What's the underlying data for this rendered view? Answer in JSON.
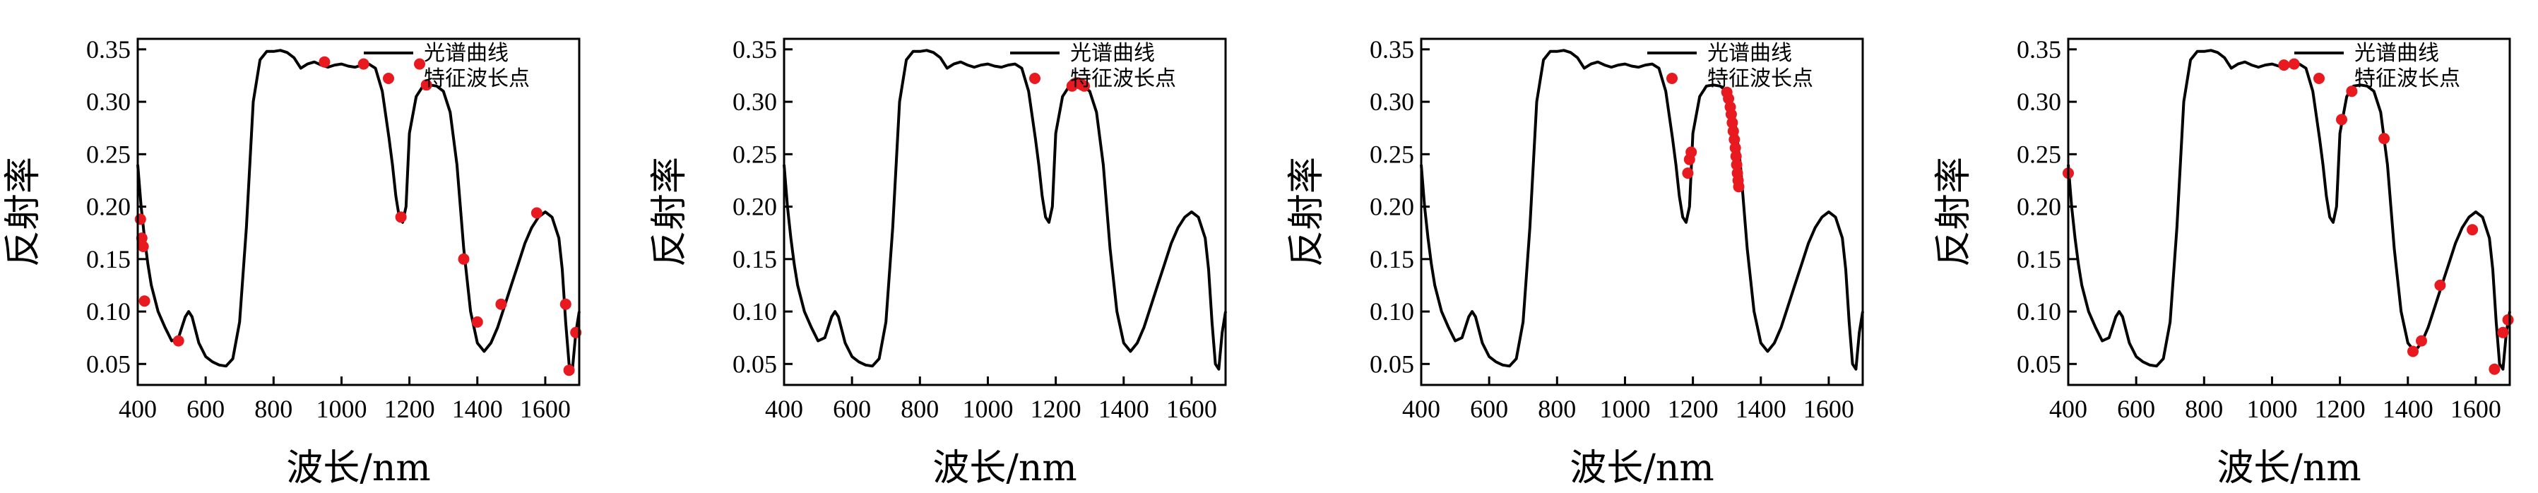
{
  "chart_data": [
    {
      "type": "line",
      "panel": "panel-1",
      "xlabel": "波长/nm",
      "ylabel": "反射率",
      "xlim": [
        400,
        1700
      ],
      "ylim": [
        0.03,
        0.36
      ],
      "xticks": [
        "400",
        "600",
        "800",
        "1000",
        "1200",
        "1400",
        "1600"
      ],
      "yticks": [
        "0.05",
        "0.10",
        "0.15",
        "0.20",
        "0.25",
        "0.30",
        "0.35"
      ],
      "legend": {
        "placement": "top-right",
        "line_label": "光谱曲线",
        "marker_label": "特征波长点"
      },
      "series": [
        {
          "name": "光谱曲线",
          "kind": "line",
          "color": "#000000"
        },
        {
          "name": "特征波长点",
          "kind": "scatter",
          "color": "#e8191f",
          "x": [
            408,
            412,
            416,
            420,
            520,
            950,
            1065,
            1230,
            1250,
            1175,
            1360,
            1400,
            1470,
            1575,
            1660,
            1670,
            1690
          ],
          "y": [
            0.188,
            0.17,
            0.162,
            0.11,
            0.072,
            0.338,
            0.336,
            0.336,
            0.316,
            0.19,
            0.15,
            0.09,
            0.107,
            0.194,
            0.107,
            0.044,
            0.08
          ]
        }
      ]
    },
    {
      "type": "line",
      "panel": "panel-2",
      "xlabel": "波长/nm",
      "ylabel": "反射率",
      "xlim": [
        400,
        1700
      ],
      "ylim": [
        0.03,
        0.36
      ],
      "xticks": [
        "400",
        "600",
        "800",
        "1000",
        "1200",
        "1400",
        "1600"
      ],
      "yticks": [
        "0.05",
        "0.10",
        "0.15",
        "0.20",
        "0.25",
        "0.30",
        "0.35"
      ],
      "legend": {
        "placement": "top-right",
        "line_label": "光谱曲线",
        "marker_label": "特征波长点"
      },
      "series": [
        {
          "name": "光谱曲线",
          "kind": "line",
          "color": "#000000"
        },
        {
          "name": "特征波长点",
          "kind": "scatter",
          "color": "#e8191f",
          "x": [
            1248,
            1254,
            1260,
            1266,
            1272,
            1278,
            1284
          ],
          "y": [
            0.315,
            0.317,
            0.318,
            0.318,
            0.317,
            0.316,
            0.315
          ]
        }
      ]
    },
    {
      "type": "line",
      "panel": "panel-3",
      "xlabel": "波长/nm",
      "ylabel": "反射率",
      "xlim": [
        400,
        1700
      ],
      "ylim": [
        0.03,
        0.36
      ],
      "xticks": [
        "400",
        "600",
        "800",
        "1000",
        "1200",
        "1400",
        "1600"
      ],
      "yticks": [
        "0.05",
        "0.10",
        "0.15",
        "0.20",
        "0.25",
        "0.30",
        "0.35"
      ],
      "legend": {
        "placement": "top-right",
        "line_label": "光谱曲线",
        "marker_label": "特征波长点"
      },
      "series": [
        {
          "name": "光谱曲线",
          "kind": "line",
          "color": "#000000"
        },
        {
          "name": "特征波长点",
          "kind": "scatter",
          "color": "#e8191f",
          "x": [
            1185,
            1190,
            1195,
            1300,
            1305,
            1310,
            1313,
            1316,
            1319,
            1322,
            1325,
            1327,
            1329,
            1331,
            1333,
            1335
          ],
          "y": [
            0.232,
            0.245,
            0.252,
            0.309,
            0.303,
            0.295,
            0.288,
            0.28,
            0.272,
            0.264,
            0.256,
            0.248,
            0.24,
            0.232,
            0.225,
            0.219
          ]
        }
      ]
    },
    {
      "type": "line",
      "panel": "panel-4",
      "xlabel": "波长/nm",
      "ylabel": "反射率",
      "xlim": [
        400,
        1700
      ],
      "ylim": [
        0.03,
        0.36
      ],
      "xticks": [
        "400",
        "600",
        "800",
        "1000",
        "1200",
        "1400",
        "1600"
      ],
      "yticks": [
        "0.05",
        "0.10",
        "0.15",
        "0.20",
        "0.25",
        "0.30",
        "0.35"
      ],
      "legend": {
        "placement": "top-right",
        "line_label": "光谱曲线",
        "marker_label": "特征波长点"
      },
      "series": [
        {
          "name": "光谱曲线",
          "kind": "line",
          "color": "#000000"
        },
        {
          "name": "特征波长点",
          "kind": "scatter",
          "color": "#e8191f",
          "x": [
            400,
            1035,
            1065,
            1205,
            1235,
            1330,
            1415,
            1440,
            1495,
            1590,
            1655,
            1680,
            1695
          ],
          "y": [
            0.232,
            0.335,
            0.336,
            0.283,
            0.31,
            0.265,
            0.062,
            0.072,
            0.125,
            0.178,
            0.045,
            0.08,
            0.092
          ]
        }
      ]
    }
  ],
  "spectrum": {
    "x": [
      400,
      410,
      420,
      430,
      440,
      460,
      480,
      500,
      520,
      540,
      550,
      560,
      580,
      600,
      620,
      640,
      660,
      680,
      700,
      720,
      740,
      760,
      780,
      800,
      820,
      840,
      860,
      880,
      900,
      920,
      940,
      960,
      980,
      1000,
      1020,
      1040,
      1060,
      1080,
      1100,
      1120,
      1140,
      1150,
      1160,
      1170,
      1180,
      1190,
      1200,
      1220,
      1240,
      1260,
      1280,
      1300,
      1320,
      1340,
      1360,
      1380,
      1400,
      1420,
      1440,
      1460,
      1480,
      1500,
      1520,
      1540,
      1560,
      1580,
      1600,
      1620,
      1640,
      1650,
      1660,
      1670,
      1680,
      1690,
      1700
    ],
    "y": [
      0.24,
      0.2,
      0.17,
      0.145,
      0.125,
      0.1,
      0.085,
      0.072,
      0.075,
      0.095,
      0.1,
      0.095,
      0.07,
      0.057,
      0.052,
      0.049,
      0.048,
      0.055,
      0.09,
      0.18,
      0.3,
      0.34,
      0.348,
      0.348,
      0.349,
      0.347,
      0.342,
      0.332,
      0.336,
      0.338,
      0.335,
      0.333,
      0.335,
      0.336,
      0.334,
      0.333,
      0.335,
      0.336,
      0.332,
      0.31,
      0.265,
      0.24,
      0.21,
      0.19,
      0.185,
      0.2,
      0.27,
      0.305,
      0.315,
      0.316,
      0.315,
      0.31,
      0.29,
      0.24,
      0.16,
      0.1,
      0.07,
      0.062,
      0.07,
      0.085,
      0.105,
      0.125,
      0.145,
      0.165,
      0.18,
      0.19,
      0.195,
      0.19,
      0.17,
      0.14,
      0.09,
      0.05,
      0.045,
      0.08,
      0.1
    ]
  }
}
